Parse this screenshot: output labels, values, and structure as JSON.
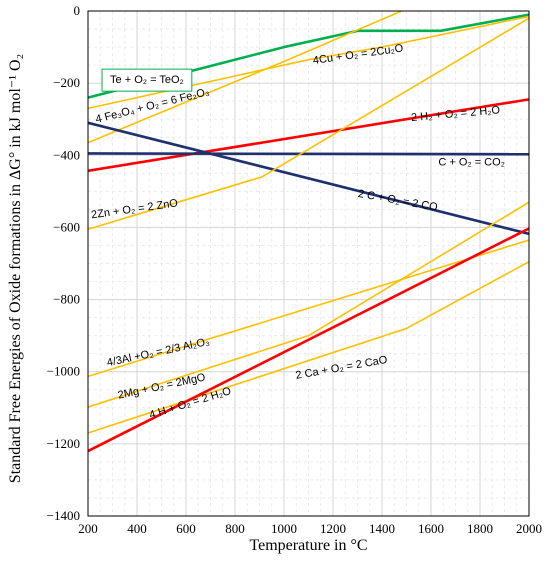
{
  "chart_data": {
    "type": "line",
    "xlabel": "Temperature in °C",
    "ylabel": "Standard Free Energies of Oxide formations in ΔG° in kJ mol⁻¹ O₂",
    "xlim": [
      200,
      2000
    ],
    "ylim": [
      -1400,
      0
    ],
    "xticks": [
      200,
      400,
      600,
      800,
      1000,
      1200,
      1400,
      1600,
      1800,
      2000
    ],
    "yticks": [
      0,
      -200,
      -400,
      -600,
      -800,
      -1000,
      -1200,
      -1400
    ],
    "grid": true,
    "colors": {
      "orange": "#ffc000",
      "red": "#ff0000",
      "navy": "#1f3070",
      "green": "#00b050"
    },
    "series": [
      {
        "name": "Te + O2 = TeO2",
        "color": "#00b050",
        "x": [
          200,
          1000,
          1300,
          1640,
          2000
        ],
        "y": [
          -240,
          -100,
          -55,
          -55,
          -10
        ]
      },
      {
        "name": "4Cu + O2 = 2Cu2O",
        "color": "#ffc000",
        "x": [
          200,
          1100,
          1400,
          2000
        ],
        "y": [
          -270,
          -135,
          -100,
          -15
        ]
      },
      {
        "name": "4 Fe3O4 + O2 = 6 Fe2O3",
        "color": "#ffc000",
        "x": [
          200,
          1000,
          1480
        ],
        "y": [
          -365,
          -140,
          0
        ]
      },
      {
        "name": "2 H2 + O2 = 2 H2O",
        "color": "#ff0000",
        "x": [
          200,
          2000
        ],
        "y": [
          -443,
          -245
        ]
      },
      {
        "name": "C + O2 = CO2",
        "color": "#1f3070",
        "x": [
          200,
          2000
        ],
        "y": [
          -395,
          -397
        ]
      },
      {
        "name": "2 C + O2 = 2 CO",
        "color": "#1f3070",
        "x": [
          200,
          2000
        ],
        "y": [
          -310,
          -618
        ]
      },
      {
        "name": "2Zn + O2 = 2 ZnO",
        "color": "#ffc000",
        "x": [
          200,
          910,
          2000
        ],
        "y": [
          -605,
          -460,
          -20
        ]
      },
      {
        "name": "4/3Al + O2 = 2/3 Al2O3",
        "color": "#ffc000",
        "x": [
          200,
          2000
        ],
        "y": [
          -1013,
          -635
        ]
      },
      {
        "name": "2Mg + O2 = 2MgO",
        "color": "#ffc000",
        "x": [
          200,
          1100,
          2000
        ],
        "y": [
          -1098,
          -900,
          -530
        ]
      },
      {
        "name": "2 Ca + O2 = 2 CaO",
        "color": "#ffc000",
        "x": [
          200,
          1500,
          2000
        ],
        "y": [
          -1170,
          -880,
          -695
        ]
      },
      {
        "name": "4 H + O2 = 2 H2O",
        "color": "#ff0000",
        "x": [
          200,
          2000
        ],
        "y": [
          -1220,
          -603
        ]
      }
    ],
    "annotations": [
      {
        "text": "Te + O₂ = TeO₂",
        "x": 290,
        "y": -200,
        "angle": 0,
        "boxed": true,
        "boxcolor": "#00b050"
      },
      {
        "text": "4Cu + O₂ = 2Cu₂O",
        "x": 1120,
        "y": -147,
        "angle": -8
      },
      {
        "text": "4 Fe₃O₄ + O₂ = 6 Fe₂O₃",
        "x": 235,
        "y": -310,
        "angle": -14
      },
      {
        "text": "2 H₂ + O₂ = 2 H₂O",
        "x": 1520,
        "y": -305,
        "angle": -5
      },
      {
        "text": "C + O₂ = CO₂",
        "x": 1630,
        "y": -428,
        "angle": 0
      },
      {
        "text": "2 C + O₂ = 2 CO",
        "x": 1300,
        "y": -515,
        "angle": 10
      },
      {
        "text": "2Zn + O₂ = 2 ZnO",
        "x": 215,
        "y": -575,
        "angle": -8
      },
      {
        "text": "4/3Al +O₂ = 2/3 Al₂O₃",
        "x": 280,
        "y": -985,
        "angle": -12
      },
      {
        "text": "2Mg + O₂ = 2MgO",
        "x": 325,
        "y": -1075,
        "angle": -12
      },
      {
        "text": "4 H + O₂ = 2 H₂O",
        "x": 455,
        "y": -1130,
        "angle": -17
      },
      {
        "text": "2 Ca + O₂ = 2 CaO",
        "x": 1050,
        "y": -1020,
        "angle": -10
      }
    ]
  }
}
